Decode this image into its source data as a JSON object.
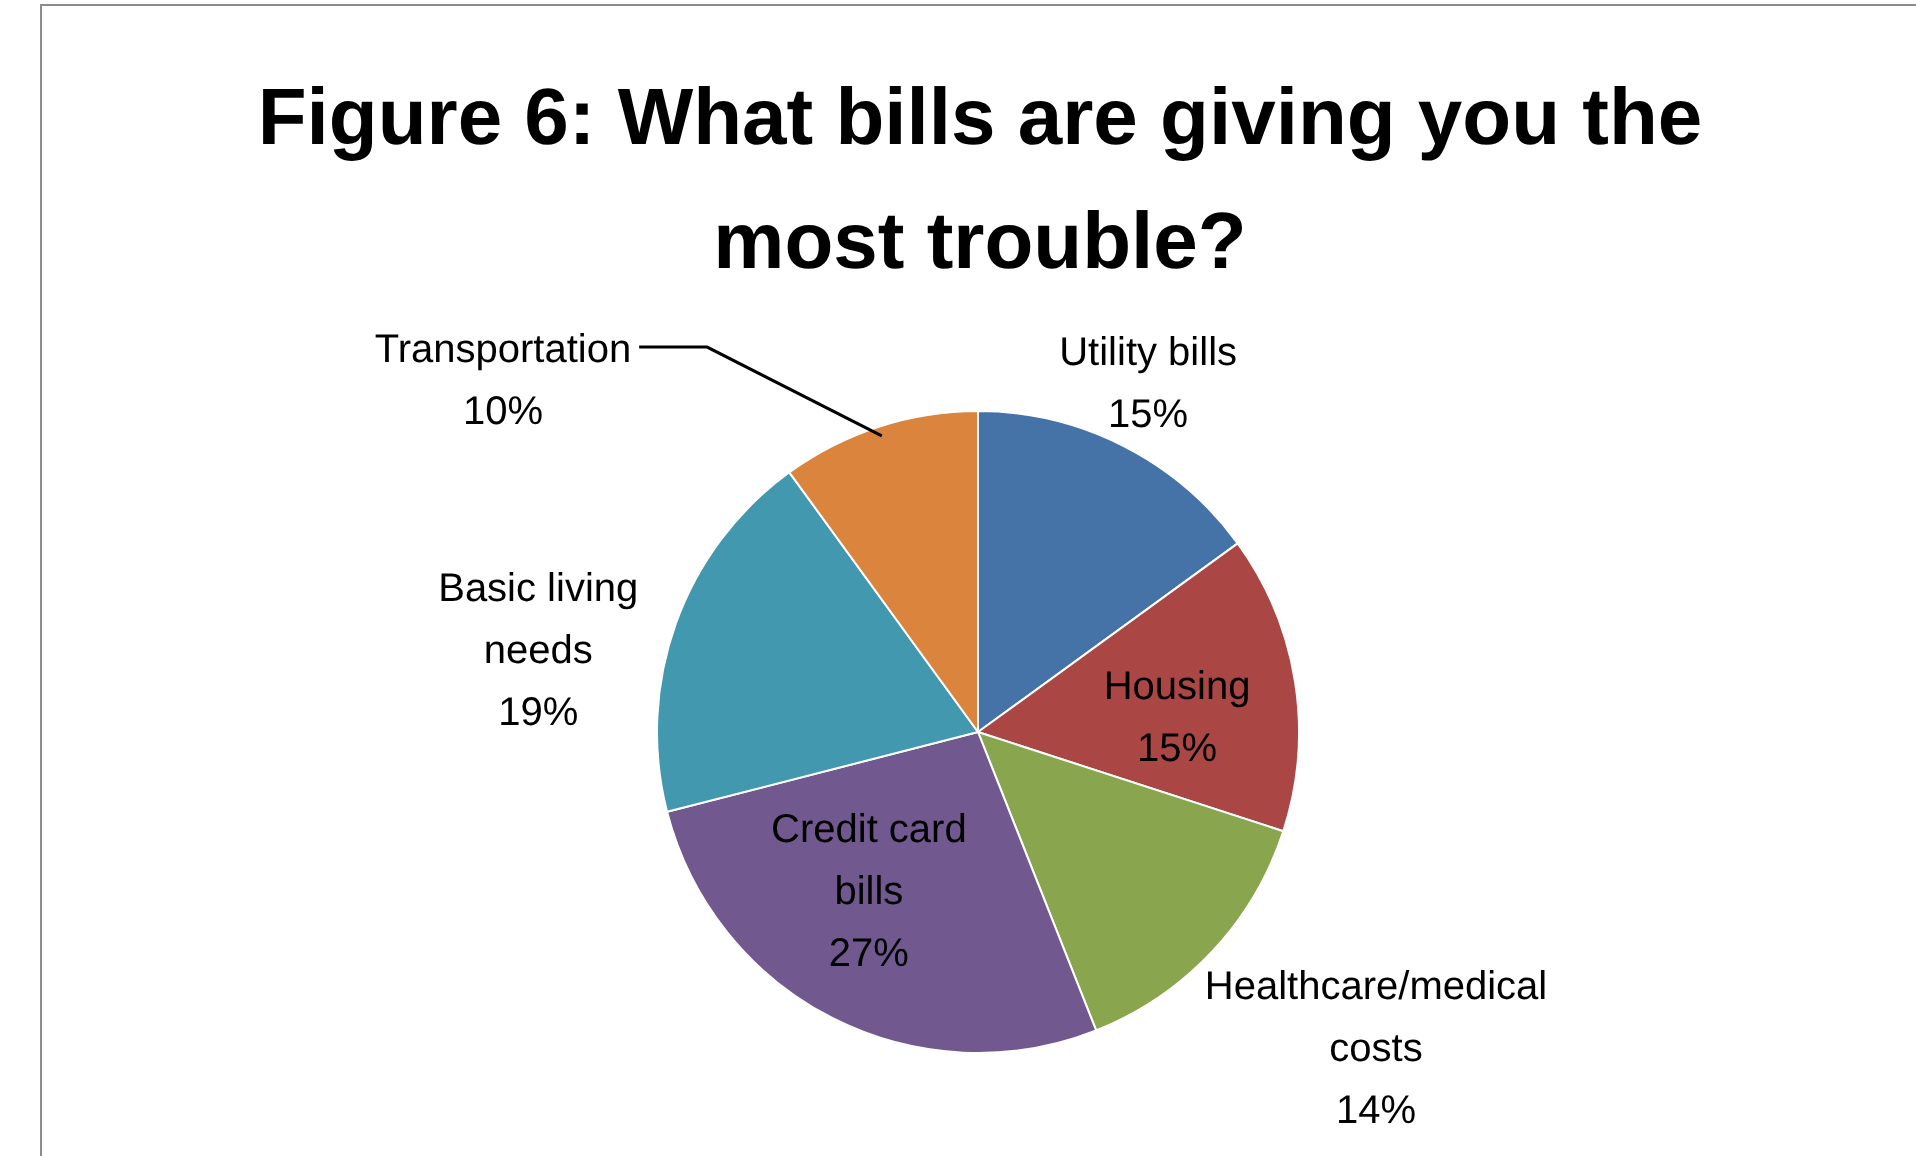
{
  "chart_data": {
    "type": "pie",
    "title": "Figure 6: What bills are giving you the most trouble?",
    "categories": [
      "Utility bills",
      "Housing",
      "Healthcare/medical costs",
      "Credit card bills",
      "Basic living needs",
      "Transportation"
    ],
    "values": [
      15,
      15,
      14,
      27,
      19,
      10
    ],
    "colors": [
      "#4572a7",
      "#aa4643",
      "#89a54e",
      "#71588f",
      "#4198af",
      "#db843d"
    ],
    "value_labels": [
      "15%",
      "15%",
      "14%",
      "27%",
      "19%",
      "10%"
    ],
    "legend": false
  }
}
